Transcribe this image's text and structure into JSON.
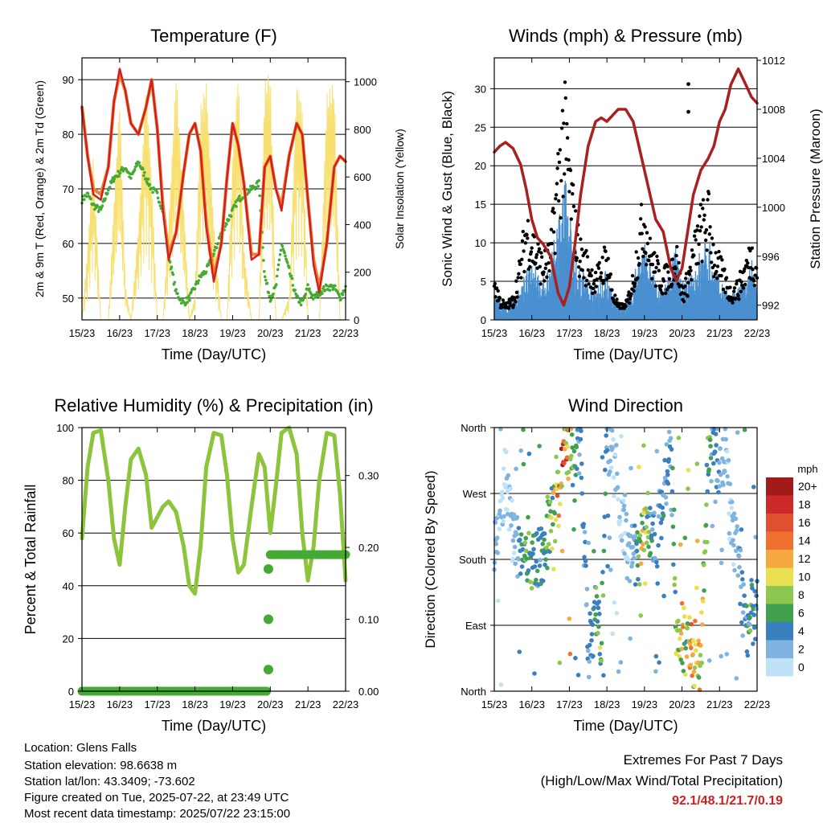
{
  "x_ticks": [
    "15/23",
    "16/23",
    "17/23",
    "18/23",
    "19/23",
    "20/23",
    "21/23",
    "22/23"
  ],
  "xlabel": "Time (Day/UTC)",
  "colors": {
    "temp2m": "#d02020",
    "temp9m": "#f08030",
    "dewpoint": "#44aa33",
    "solar": "#f8e070",
    "gust": "#000000",
    "wind": "#4a90d0",
    "pressure": "#aa1f1f",
    "rh": "#8cc43c",
    "precip": "#44aa33"
  },
  "chart_data": [
    {
      "id": "temperature",
      "type": "line",
      "title": "Temperature (F)",
      "xlabel": "Time (Day/UTC)",
      "ylabel": "2m & 9m T (Red, Orange) & 2m Td (Green)",
      "y2label": "Solar Insolation (Yellow)",
      "ylim": [
        46,
        94
      ],
      "y2lim": [
        0,
        1100
      ],
      "yticks": [
        50,
        60,
        70,
        80,
        90
      ],
      "y2ticks": [
        0,
        200,
        400,
        600,
        800,
        1000
      ],
      "x": [
        0,
        0.15,
        0.3,
        0.5,
        0.7,
        0.85,
        1.0,
        1.15,
        1.3,
        1.5,
        1.7,
        1.85,
        2.0,
        2.15,
        2.3,
        2.5,
        2.7,
        2.85,
        3.0,
        3.15,
        3.3,
        3.5,
        3.7,
        3.85,
        4.0,
        4.15,
        4.3,
        4.5,
        4.7,
        4.85,
        5.0,
        5.15,
        5.3,
        5.5,
        5.7,
        5.85,
        6.0,
        6.15,
        6.3,
        6.5,
        6.7,
        6.85,
        7.0
      ],
      "series": [
        {
          "name": "2m T",
          "values": [
            85,
            76,
            69,
            68,
            74,
            86,
            92,
            88,
            82,
            80,
            85,
            90,
            81,
            66,
            57,
            62,
            73,
            80,
            82,
            77,
            63,
            53,
            60,
            72,
            82,
            78,
            71,
            57,
            58,
            74,
            76,
            70,
            66,
            76,
            82,
            80,
            68,
            56,
            51,
            60,
            74,
            76,
            75
          ]
        },
        {
          "name": "9m T",
          "values": [
            85,
            76,
            70,
            69,
            74,
            86,
            91,
            88,
            82,
            80,
            85,
            90,
            81,
            67,
            58,
            62,
            73,
            80,
            82,
            77,
            64,
            54,
            60,
            72,
            82,
            78,
            71,
            58,
            58,
            74,
            76,
            70,
            67,
            76,
            82,
            80,
            68,
            57,
            52,
            60,
            74,
            76,
            75
          ]
        },
        {
          "name": "2m Td",
          "values": [
            68,
            69,
            67,
            66,
            70,
            72,
            73,
            74,
            72,
            75,
            72,
            70,
            69,
            66,
            58,
            51,
            49,
            50,
            52,
            54,
            55,
            58,
            62,
            64,
            66,
            68,
            69,
            70,
            71,
            54,
            50,
            52,
            60,
            55,
            50,
            49,
            52,
            50,
            51,
            52,
            52,
            50,
            52
          ]
        },
        {
          "name": "Solar",
          "values": [
            0,
            300,
            700,
            0,
            0,
            500,
            950,
            150,
            0,
            400,
            1000,
            600,
            0,
            0,
            400,
            1050,
            500,
            0,
            100,
            900,
            1000,
            400,
            0,
            0,
            700,
            1050,
            300,
            0,
            0,
            1000,
            1050,
            0,
            0,
            100,
            1000,
            900,
            0,
            0,
            0,
            950,
            1000,
            0,
            0
          ]
        }
      ]
    },
    {
      "id": "winds",
      "type": "scatter",
      "title": "Winds (mph) & Pressure (mb)",
      "xlabel": "Time (Day/UTC)",
      "ylabel": "Sonic Wind & Gust (Blue, Black)",
      "y2label": "Station Pressure (Maroon)",
      "ylim": [
        0,
        34
      ],
      "y2lim": [
        990.8,
        1012.2
      ],
      "yticks": [
        0,
        5,
        10,
        15,
        20,
        25,
        30
      ],
      "y2ticks": [
        992,
        996,
        1000,
        1004,
        1008,
        1012
      ],
      "x": [
        0,
        0.15,
        0.3,
        0.5,
        0.7,
        0.85,
        1.0,
        1.15,
        1.3,
        1.5,
        1.7,
        1.85,
        2.0,
        2.15,
        2.3,
        2.5,
        2.7,
        2.85,
        3.0,
        3.15,
        3.3,
        3.5,
        3.7,
        3.85,
        4.0,
        4.15,
        4.3,
        4.5,
        4.7,
        4.85,
        5.0,
        5.15,
        5.3,
        5.5,
        5.7,
        5.85,
        6.0,
        6.15,
        6.3,
        6.5,
        6.7,
        6.85,
        7.0
      ],
      "series": [
        {
          "name": "Gust",
          "values": [
            6,
            3,
            2,
            3,
            8,
            14,
            12,
            10,
            8,
            10,
            22,
            30,
            22,
            14,
            10,
            8,
            6,
            8,
            10,
            4,
            2,
            2,
            6,
            12,
            16,
            10,
            8,
            6,
            8,
            10,
            4,
            6,
            10,
            14,
            16,
            10,
            8,
            6,
            4,
            5,
            8,
            10,
            8
          ]
        },
        {
          "name": "Wind",
          "values": [
            2,
            1,
            1,
            1,
            3,
            7,
            6,
            5,
            4,
            6,
            14,
            18,
            14,
            8,
            6,
            4,
            3,
            4,
            5,
            2,
            1,
            1,
            3,
            8,
            10,
            6,
            4,
            3,
            5,
            10,
            3,
            4,
            6,
            8,
            10,
            6,
            4,
            3,
            2,
            3,
            5,
            6,
            4
          ]
        },
        {
          "name": "Pressure",
          "values": [
            1004.5,
            1005,
            1005.3,
            1004.8,
            1003.5,
            1001.5,
            999,
            997.5,
            997,
            996,
            993,
            992,
            993.5,
            997,
            1001,
            1005,
            1007,
            1007.3,
            1007,
            1007.5,
            1008,
            1008,
            1007,
            1005,
            1003,
            1001,
            999,
            998,
            995,
            994,
            995,
            998,
            1001,
            1003,
            1004,
            1005,
            1007,
            1008,
            1010,
            1011.3,
            1010,
            1009,
            1008.5
          ]
        }
      ]
    },
    {
      "id": "humidity",
      "type": "line",
      "title": "Relative Humidity (%) & Precipitation (in)",
      "xlabel": "Time (Day/UTC)",
      "ylabel": "Percent & Total Rainfall",
      "ylim": [
        0,
        100
      ],
      "y2lim": [
        0,
        0.3667
      ],
      "yticks": [
        0,
        20,
        40,
        60,
        80,
        100
      ],
      "y2ticks": [
        0.0,
        0.1,
        0.2,
        0.3
      ],
      "y2ticklabels": [
        "0.00",
        "0.10",
        "0.20",
        "0.30"
      ],
      "x": [
        0,
        0.15,
        0.3,
        0.5,
        0.7,
        0.85,
        1.0,
        1.15,
        1.3,
        1.5,
        1.7,
        1.85,
        2.0,
        2.15,
        2.3,
        2.5,
        2.7,
        2.85,
        3.0,
        3.15,
        3.3,
        3.5,
        3.7,
        3.85,
        4.0,
        4.15,
        4.3,
        4.5,
        4.7,
        4.85,
        5.0,
        5.15,
        5.3,
        5.5,
        5.7,
        5.85,
        6.0,
        6.15,
        6.3,
        6.5,
        6.7,
        6.85,
        7.0
      ],
      "series": [
        {
          "name": "RH",
          "values": [
            58,
            85,
            98,
            99,
            80,
            58,
            48,
            70,
            88,
            92,
            82,
            62,
            66,
            70,
            72,
            68,
            55,
            40,
            37,
            55,
            85,
            98,
            97,
            82,
            58,
            45,
            48,
            70,
            90,
            85,
            60,
            78,
            98,
            100,
            90,
            60,
            42,
            55,
            80,
            98,
            97,
            75,
            42
          ]
        },
        {
          "name": "Precip",
          "x": [
            0,
            1,
            2,
            3,
            4,
            4.9,
            4.94,
            5.0,
            5.5,
            6,
            6.5,
            7
          ],
          "values": [
            0,
            0,
            0,
            0,
            0,
            0,
            0.03,
            0.19,
            0.19,
            0.19,
            0.19,
            0.19
          ]
        }
      ]
    },
    {
      "id": "direction",
      "type": "scatter",
      "title": "Wind Direction",
      "xlabel": "Time (Day/UTC)",
      "ylabel": "Direction (Colored By Speed)",
      "ylim": [
        0,
        360
      ],
      "yticks": [
        0,
        90,
        180,
        270,
        360
      ],
      "yticklabels": [
        "North",
        "East",
        "South",
        "West",
        "North"
      ],
      "colorbar": {
        "title": "mph",
        "labels": [
          "20+",
          "18",
          "16",
          "14",
          "12",
          "10",
          "8",
          "6",
          "4",
          "2",
          "0"
        ],
        "colors": [
          "#a21a1a",
          "#cc2a2a",
          "#e05030",
          "#f07030",
          "#f8a840",
          "#e8e050",
          "#8cc850",
          "#40a050",
          "#3a80c0",
          "#7fb4e0",
          "#c0e2f8"
        ]
      },
      "x": [
        0,
        0.15,
        0.3,
        0.5,
        0.7,
        0.85,
        1.0,
        1.15,
        1.3,
        1.5,
        1.7,
        1.85,
        2.0,
        2.15,
        2.3,
        2.5,
        2.7,
        2.85,
        3.0,
        3.15,
        3.3,
        3.5,
        3.7,
        3.85,
        4.0,
        4.15,
        4.3,
        4.5,
        4.7,
        4.85,
        5.0,
        5.15,
        5.3,
        5.5,
        5.7,
        5.85,
        6.0,
        6.15,
        6.3,
        6.5,
        6.7,
        6.85,
        7.0
      ],
      "series": [
        {
          "name": "Direction",
          "values": [
            185,
            250,
            290,
            210,
            180,
            200,
            180,
            185,
            190,
            230,
            260,
            330,
            345,
            300,
            340,
            60,
            100,
            80,
            350,
            320,
            280,
            200,
            190,
            180,
            220,
            230,
            190,
            270,
            330,
            70,
            75,
            60,
            50,
            40,
            320,
            340,
            300,
            340,
            230,
            180,
            80,
            100,
            120
          ]
        },
        {
          "name": "Speed",
          "values": [
            2,
            1,
            1,
            1,
            4,
            7,
            6,
            5,
            5,
            7,
            13,
            17,
            11,
            6,
            4,
            3,
            6,
            8,
            3,
            1,
            1,
            1,
            2,
            8,
            10,
            5,
            3,
            4,
            3,
            10,
            11,
            9,
            13,
            10,
            6,
            4,
            3,
            2,
            1,
            3,
            5,
            6,
            3
          ]
        }
      ]
    }
  ],
  "footer": {
    "location": "Location: Glens Falls",
    "elevation": "Station elevation: 98.6638 m",
    "latlon": "Station lat/lon: 43.3409; -73.602",
    "created": "Figure created on Tue, 2025-07-22, at 23:49 UTC",
    "timestamp": "Most recent data timestamp: 2025/07/22 23:15:00"
  },
  "extremes": {
    "title": "Extremes For Past 7 Days",
    "subtitle": "(High/Low/Max Wind/Total Precipitation)",
    "values": "92.1/48.1/21.7/0.19"
  }
}
